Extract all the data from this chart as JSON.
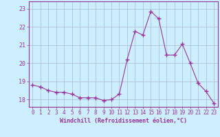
{
  "x": [
    0,
    1,
    2,
    3,
    4,
    5,
    6,
    7,
    8,
    9,
    10,
    11,
    12,
    13,
    14,
    15,
    16,
    17,
    18,
    19,
    20,
    21,
    22,
    23
  ],
  "y": [
    18.8,
    18.7,
    18.5,
    18.4,
    18.4,
    18.3,
    18.1,
    18.1,
    18.1,
    17.95,
    18.0,
    18.3,
    20.2,
    21.75,
    21.55,
    22.85,
    22.45,
    20.45,
    20.45,
    21.05,
    20.0,
    18.9,
    18.45,
    17.8
  ],
  "line_color": "#993399",
  "marker": "+",
  "marker_size": 4,
  "bg_color": "#cceeff",
  "grid_color": "#aabbcc",
  "xlabel": "Windchill (Refroidissement éolien,°C)",
  "xlabel_color": "#993399",
  "yticks": [
    18,
    19,
    20,
    21,
    22,
    23
  ],
  "ylim": [
    17.6,
    23.4
  ],
  "xlim": [
    -0.5,
    23.5
  ],
  "tick_color": "#993399",
  "spine_color": "#993399",
  "tick_fontsize": 5.5,
  "xlabel_fontsize": 6.0
}
